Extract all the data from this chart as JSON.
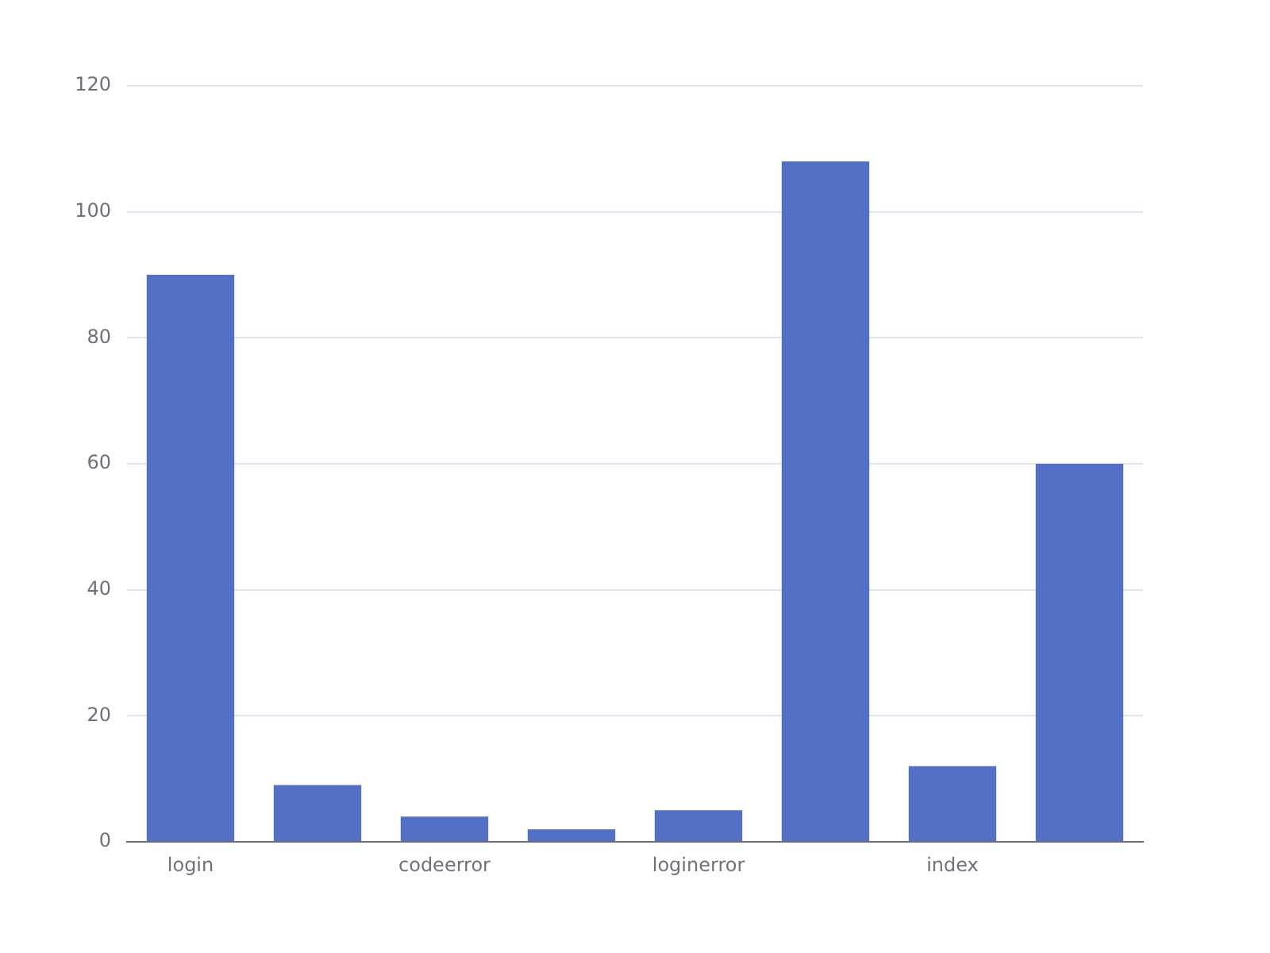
{
  "chart_data": {
    "type": "bar",
    "categories": [
      "login",
      null,
      "codeerror",
      null,
      "loginerror",
      null,
      "index",
      null
    ],
    "values": [
      90,
      9,
      4,
      2,
      5,
      108,
      12,
      60
    ],
    "color": "#5470c6",
    "ylim": [
      0,
      120
    ],
    "yticks": [
      0,
      20,
      40,
      60,
      80,
      100,
      120
    ],
    "grid": "y"
  }
}
